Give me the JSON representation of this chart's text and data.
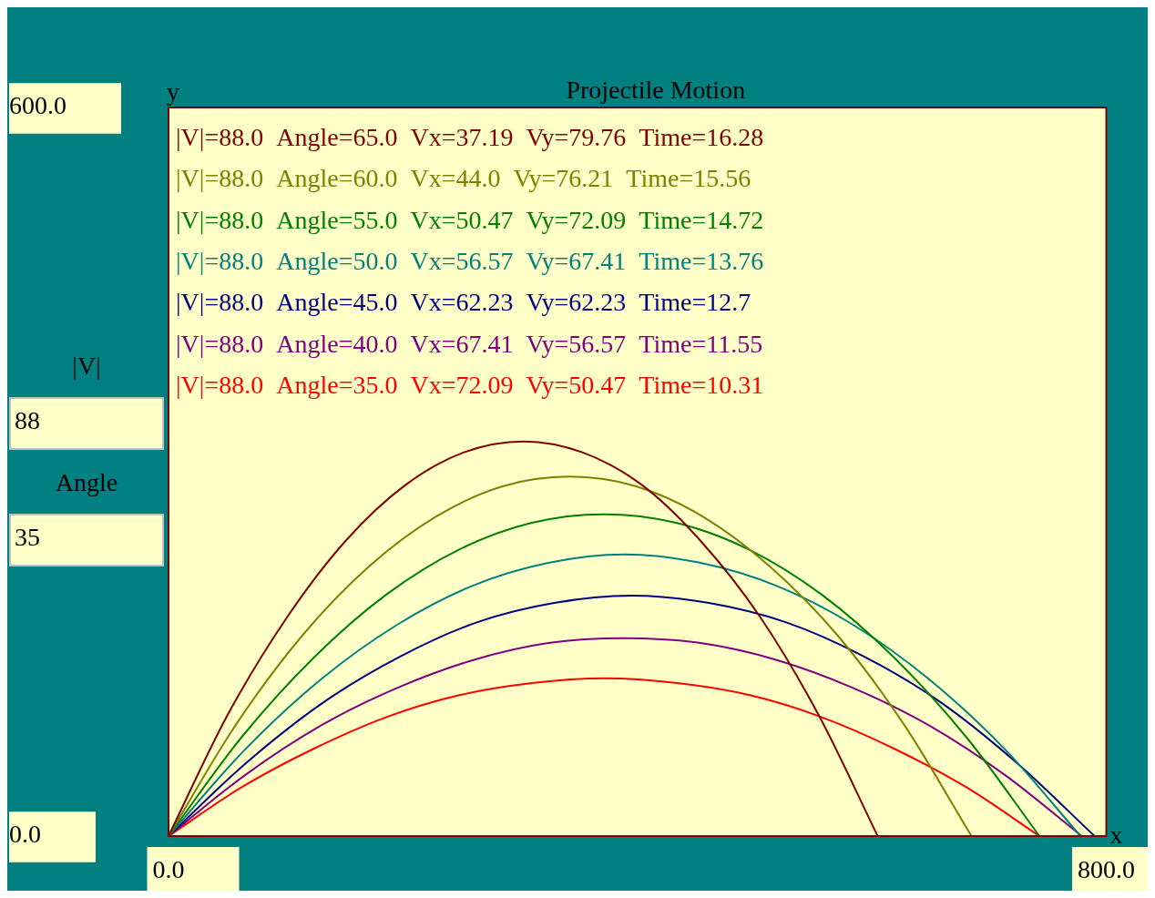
{
  "chart_data": {
    "type": "line",
    "title": "Projectile Motion",
    "xlabel": "x",
    "ylabel": "y",
    "xlim": [
      0,
      800
    ],
    "ylim": [
      0,
      600
    ],
    "xticks": [
      {
        "value": 0,
        "label": "0.0"
      },
      {
        "value": 800,
        "label": "800.0"
      }
    ],
    "yticks": [
      {
        "value": 0,
        "label": "0.0"
      },
      {
        "value": 600,
        "label": "600.0"
      }
    ],
    "annotations": [
      "|V|",
      "88",
      "Angle",
      "35"
    ],
    "series": [
      {
        "name": "|V|=88.0  Angle=65.0  Vx=37.19  Vy=79.76  Time=16.28",
        "color": "#800000",
        "x": [
          0,
          50,
          101,
          151,
          202,
          252,
          303,
          353,
          404,
          454,
          505,
          555,
          605
        ],
        "values": [
          0,
          99,
          180,
          243,
          289,
          316,
          325,
          316,
          289,
          243,
          180,
          99,
          0
        ]
      },
      {
        "name": "|V|=88.0  Angle=60.0  Vx=44.0  Vy=76.21  Time=15.56",
        "color": "#808000",
        "x": [
          0,
          57,
          114,
          171,
          228,
          285,
          342,
          399,
          456,
          513,
          571,
          628,
          685
        ],
        "values": [
          0,
          91,
          165,
          222,
          263,
          288,
          296,
          288,
          263,
          222,
          165,
          91,
          0
        ]
      },
      {
        "name": "|V|=88.0  Angle=55.0  Vx=50.47  Vy=72.09  Time=14.72",
        "color": "#008000",
        "x": [
          0,
          62,
          124,
          186,
          248,
          310,
          371,
          433,
          495,
          557,
          619,
          681,
          743
        ],
        "values": [
          0,
          81,
          147,
          199,
          236,
          258,
          265,
          258,
          236,
          199,
          147,
          81,
          0
        ]
      },
      {
        "name": "|V|=88.0  Angle=50.0  Vx=56.57  Vy=67.41  Time=13.76",
        "color": "#008080",
        "x": [
          0,
          65,
          130,
          195,
          259,
          324,
          389,
          454,
          519,
          584,
          649,
          714,
          778
        ],
        "values": [
          0,
          71,
          129,
          174,
          206,
          225,
          232,
          225,
          206,
          174,
          129,
          71,
          0
        ]
      },
      {
        "name": "|V|=88.0  Angle=45.0  Vx=62.23  Vy=62.23  Time=12.7",
        "color": "#000080",
        "x": [
          0,
          66,
          132,
          198,
          263,
          329,
          395,
          461,
          527,
          593,
          659,
          724,
          790
        ],
        "values": [
          0,
          60,
          110,
          148,
          176,
          192,
          198,
          192,
          176,
          148,
          110,
          60,
          0
        ]
      },
      {
        "name": "|V|=88.0  Angle=40.0  Vx=67.41  Vy=56.57  Time=11.55",
        "color": "#800080",
        "x": [
          0,
          65,
          130,
          195,
          260,
          324,
          389,
          454,
          519,
          584,
          649,
          714,
          779
        ],
        "values": [
          0,
          50,
          91,
          122,
          145,
          159,
          163,
          159,
          145,
          122,
          91,
          50,
          0
        ]
      },
      {
        "name": "|V|=88.0  Angle=35.0  Vx=72.09  Vy=50.47  Time=10.31",
        "color": "#ff0000",
        "x": [
          0,
          62,
          124,
          186,
          248,
          310,
          372,
          434,
          496,
          557,
          619,
          681,
          743
        ],
        "values": [
          0,
          40,
          72,
          98,
          116,
          126,
          130,
          126,
          116,
          98,
          72,
          40,
          0
        ]
      }
    ]
  }
}
